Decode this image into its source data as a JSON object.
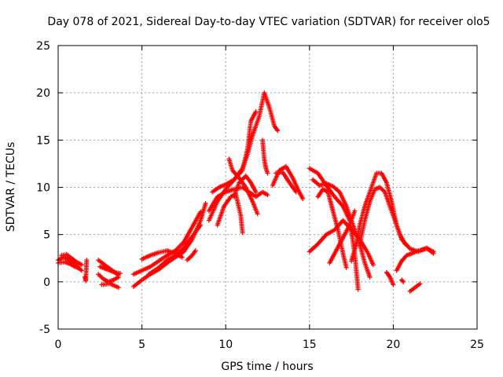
{
  "chart_data": {
    "type": "scatter",
    "title": "Day 078 of 2021, Sidereal Day-to-day VTEC variation (SDTVAR) for receiver olo5",
    "xlabel": "GPS time / hours",
    "ylabel": "SDTVAR / TECUs",
    "xlim": [
      0,
      25
    ],
    "ylim": [
      -5,
      25
    ],
    "xticks": [
      "0",
      "5",
      "10",
      "15",
      "20",
      "25"
    ],
    "yticks": [
      "-5",
      "0",
      "5",
      "10",
      "15",
      "20",
      "25"
    ],
    "grid": true,
    "marker": "plus",
    "color": "#ff0000",
    "series": [
      {
        "name": "s1",
        "points": [
          [
            0.0,
            2.3
          ],
          [
            0.3,
            2.6
          ],
          [
            0.6,
            2.4
          ],
          [
            0.9,
            2.0
          ],
          [
            1.2,
            1.5
          ],
          [
            1.4,
            1.2
          ]
        ]
      },
      {
        "name": "s2",
        "points": [
          [
            0.2,
            2.8
          ],
          [
            0.5,
            2.9
          ],
          [
            0.8,
            2.5
          ],
          [
            1.1,
            2.1
          ],
          [
            1.4,
            1.8
          ]
        ]
      },
      {
        "name": "s3",
        "points": [
          [
            0.0,
            2.0
          ],
          [
            0.4,
            2.1
          ],
          [
            0.7,
            1.9
          ],
          [
            1.0,
            1.6
          ],
          [
            1.3,
            1.4
          ]
        ]
      },
      {
        "name": "s4",
        "points": [
          [
            1.6,
            0.5
          ],
          [
            1.65,
            0.1
          ],
          [
            1.7,
            2.3
          ]
        ]
      },
      {
        "name": "s5",
        "points": [
          [
            2.4,
            2.3
          ],
          [
            2.7,
            1.9
          ],
          [
            3.0,
            1.5
          ],
          [
            3.3,
            1.1
          ],
          [
            3.6,
            0.7
          ]
        ]
      },
      {
        "name": "s6",
        "points": [
          [
            2.4,
            0.8
          ],
          [
            2.7,
            0.3
          ],
          [
            3.0,
            0.0
          ],
          [
            3.3,
            0.2
          ],
          [
            3.6,
            0.5
          ]
        ]
      },
      {
        "name": "s7",
        "points": [
          [
            2.5,
            1.6
          ],
          [
            2.8,
            1.4
          ],
          [
            3.1,
            1.2
          ],
          [
            3.4,
            1.0
          ],
          [
            3.7,
            0.9
          ]
        ]
      },
      {
        "name": "s8",
        "points": [
          [
            2.6,
            -0.3
          ],
          [
            3.1,
            -0.2
          ],
          [
            3.6,
            -0.6
          ]
        ]
      },
      {
        "name": "s9",
        "points": [
          [
            4.5,
            -0.5
          ],
          [
            5.0,
            0.2
          ],
          [
            5.5,
            0.8
          ],
          [
            6.0,
            1.3
          ],
          [
            6.5,
            2.0
          ],
          [
            7.0,
            2.6
          ],
          [
            7.5,
            3.2
          ],
          [
            8.0,
            4.5
          ],
          [
            8.5,
            6.5
          ],
          [
            8.8,
            8.3
          ]
        ]
      },
      {
        "name": "s10",
        "points": [
          [
            4.5,
            0.8
          ],
          [
            5.0,
            1.2
          ],
          [
            5.5,
            1.6
          ],
          [
            6.0,
            2.2
          ],
          [
            6.5,
            2.8
          ],
          [
            7.0,
            3.3
          ],
          [
            7.5,
            4.2
          ],
          [
            8.0,
            5.8
          ],
          [
            8.5,
            7.4
          ]
        ]
      },
      {
        "name": "s11",
        "points": [
          [
            5.0,
            2.4
          ],
          [
            5.5,
            2.8
          ],
          [
            6.0,
            3.1
          ],
          [
            6.5,
            3.3
          ],
          [
            7.0,
            3.0
          ],
          [
            7.4,
            2.6
          ]
        ]
      },
      {
        "name": "s12",
        "points": [
          [
            5.4,
            0.8
          ],
          [
            6.0,
            1.5
          ],
          [
            6.5,
            2.3
          ],
          [
            7.0,
            2.8
          ],
          [
            7.5,
            3.6
          ],
          [
            8.0,
            4.8
          ],
          [
            8.5,
            6.0
          ]
        ]
      },
      {
        "name": "s13",
        "points": [
          [
            7.7,
            2.3
          ],
          [
            8.0,
            2.8
          ],
          [
            8.2,
            3.3
          ]
        ]
      },
      {
        "name": "s14",
        "points": [
          [
            9.0,
            6.5
          ],
          [
            9.5,
            8.5
          ],
          [
            10.0,
            9.8
          ],
          [
            10.5,
            10.8
          ],
          [
            11.0,
            12.0
          ],
          [
            11.3,
            13.5
          ],
          [
            11.6,
            15.5
          ],
          [
            12.0,
            17.5
          ],
          [
            12.3,
            20.0
          ],
          [
            12.6,
            18.5
          ],
          [
            12.9,
            16.5
          ],
          [
            13.1,
            16.0
          ]
        ]
      },
      {
        "name": "s15",
        "points": [
          [
            9.2,
            9.5
          ],
          [
            9.6,
            10.0
          ],
          [
            10.0,
            10.3
          ],
          [
            10.5,
            10.8
          ],
          [
            11.0,
            11.8
          ],
          [
            11.3,
            14.0
          ],
          [
            11.5,
            17.0
          ],
          [
            11.8,
            18.0
          ]
        ]
      },
      {
        "name": "s16",
        "points": [
          [
            9.0,
            7.5
          ],
          [
            9.5,
            9.0
          ],
          [
            10.0,
            9.5
          ],
          [
            10.5,
            9.8
          ],
          [
            11.0,
            10.0
          ],
          [
            11.4,
            9.5
          ],
          [
            11.8,
            9.0
          ],
          [
            12.2,
            9.5
          ],
          [
            12.5,
            9.2
          ]
        ]
      },
      {
        "name": "s17",
        "points": [
          [
            9.5,
            6.0
          ],
          [
            9.9,
            8.0
          ],
          [
            10.3,
            9.0
          ],
          [
            10.6,
            9.3
          ],
          [
            10.9,
            7.0
          ],
          [
            11.0,
            5.2
          ]
        ]
      },
      {
        "name": "s18",
        "points": [
          [
            10.2,
            13.0
          ],
          [
            10.4,
            11.8
          ],
          [
            10.8,
            11.0
          ],
          [
            11.2,
            10.0
          ],
          [
            11.6,
            8.5
          ],
          [
            11.9,
            7.2
          ]
        ]
      },
      {
        "name": "s19",
        "points": [
          [
            10.5,
            9.0
          ],
          [
            10.8,
            10.5
          ],
          [
            11.2,
            11.2
          ],
          [
            11.5,
            10.5
          ],
          [
            11.8,
            9.5
          ]
        ]
      },
      {
        "name": "s20",
        "points": [
          [
            12.2,
            15.0
          ],
          [
            12.3,
            13.0
          ],
          [
            12.4,
            12.0
          ],
          [
            12.5,
            11.5
          ]
        ]
      },
      {
        "name": "s21",
        "points": [
          [
            12.8,
            10.2
          ],
          [
            13.2,
            11.8
          ],
          [
            13.6,
            12.2
          ],
          [
            14.0,
            11.0
          ],
          [
            14.3,
            9.8
          ],
          [
            14.6,
            8.8
          ]
        ]
      },
      {
        "name": "s22",
        "points": [
          [
            13.0,
            11.5
          ],
          [
            13.4,
            11.6
          ],
          [
            13.8,
            10.5
          ],
          [
            14.2,
            9.5
          ]
        ]
      },
      {
        "name": "s23",
        "points": [
          [
            15.0,
            12.0
          ],
          [
            15.5,
            11.5
          ],
          [
            16.0,
            10.2
          ],
          [
            16.5,
            9.0
          ],
          [
            17.0,
            8.0
          ],
          [
            17.4,
            6.5
          ],
          [
            17.7,
            3.0
          ],
          [
            17.9,
            -0.8
          ]
        ]
      },
      {
        "name": "s24",
        "points": [
          [
            15.2,
            10.8
          ],
          [
            15.6,
            10.2
          ],
          [
            16.0,
            10.4
          ],
          [
            16.4,
            10.1
          ],
          [
            16.8,
            9.5
          ],
          [
            17.2,
            8.0
          ],
          [
            17.6,
            6.0
          ],
          [
            18.0,
            4.0
          ],
          [
            18.3,
            2.0
          ],
          [
            18.6,
            0.5
          ]
        ]
      },
      {
        "name": "s25",
        "points": [
          [
            15.0,
            3.2
          ],
          [
            15.5,
            4.0
          ],
          [
            16.0,
            5.0
          ],
          [
            16.5,
            5.5
          ],
          [
            17.0,
            6.5
          ],
          [
            17.5,
            5.5
          ],
          [
            18.0,
            4.5
          ],
          [
            18.5,
            3.0
          ],
          [
            18.8,
            1.8
          ]
        ]
      },
      {
        "name": "s26",
        "points": [
          [
            15.5,
            9.0
          ],
          [
            15.8,
            9.8
          ],
          [
            16.1,
            9.5
          ],
          [
            16.4,
            7.5
          ],
          [
            16.7,
            5.5
          ],
          [
            17.0,
            3.0
          ],
          [
            17.2,
            1.5
          ]
        ]
      },
      {
        "name": "s27",
        "points": [
          [
            16.2,
            2.0
          ],
          [
            16.5,
            3.0
          ],
          [
            16.8,
            4.0
          ],
          [
            17.1,
            5.0
          ],
          [
            17.4,
            6.0
          ],
          [
            17.7,
            7.5
          ]
        ]
      },
      {
        "name": "s28",
        "points": [
          [
            17.5,
            2.2
          ],
          [
            17.8,
            4.0
          ],
          [
            18.0,
            6.0
          ],
          [
            18.3,
            8.0
          ],
          [
            18.7,
            10.0
          ],
          [
            19.0,
            11.5
          ],
          [
            19.3,
            11.5
          ],
          [
            19.6,
            10.5
          ],
          [
            19.9,
            8.5
          ],
          [
            20.2,
            6.0
          ],
          [
            20.5,
            4.5
          ],
          [
            21.0,
            3.5
          ],
          [
            21.5,
            3.2
          ],
          [
            22.0,
            3.6
          ],
          [
            22.4,
            3.0
          ]
        ]
      },
      {
        "name": "s29",
        "points": [
          [
            18.0,
            4.0
          ],
          [
            18.3,
            6.5
          ],
          [
            18.6,
            8.5
          ],
          [
            18.9,
            9.8
          ],
          [
            19.2,
            10.0
          ],
          [
            19.5,
            9.5
          ],
          [
            19.8,
            8.0
          ],
          [
            20.1,
            6.5
          ],
          [
            20.4,
            5.0
          ],
          [
            20.7,
            4.0
          ]
        ]
      },
      {
        "name": "s30",
        "points": [
          [
            19.6,
            1.0
          ],
          [
            19.8,
            0.5
          ],
          [
            20.0,
            -0.3
          ]
        ]
      },
      {
        "name": "s31",
        "points": [
          [
            20.2,
            1.2
          ],
          [
            20.5,
            2.2
          ],
          [
            20.8,
            2.8
          ],
          [
            21.1,
            3.0
          ],
          [
            21.5,
            3.3
          ],
          [
            22.0,
            3.5
          ],
          [
            22.4,
            3.2
          ]
        ]
      },
      {
        "name": "s32",
        "points": [
          [
            21.0,
            -1.0
          ],
          [
            21.3,
            -0.6
          ],
          [
            21.6,
            -0.2
          ]
        ]
      },
      {
        "name": "s33",
        "points": [
          [
            20.5,
            0.2
          ],
          [
            20.6,
            0.0
          ]
        ]
      }
    ]
  }
}
